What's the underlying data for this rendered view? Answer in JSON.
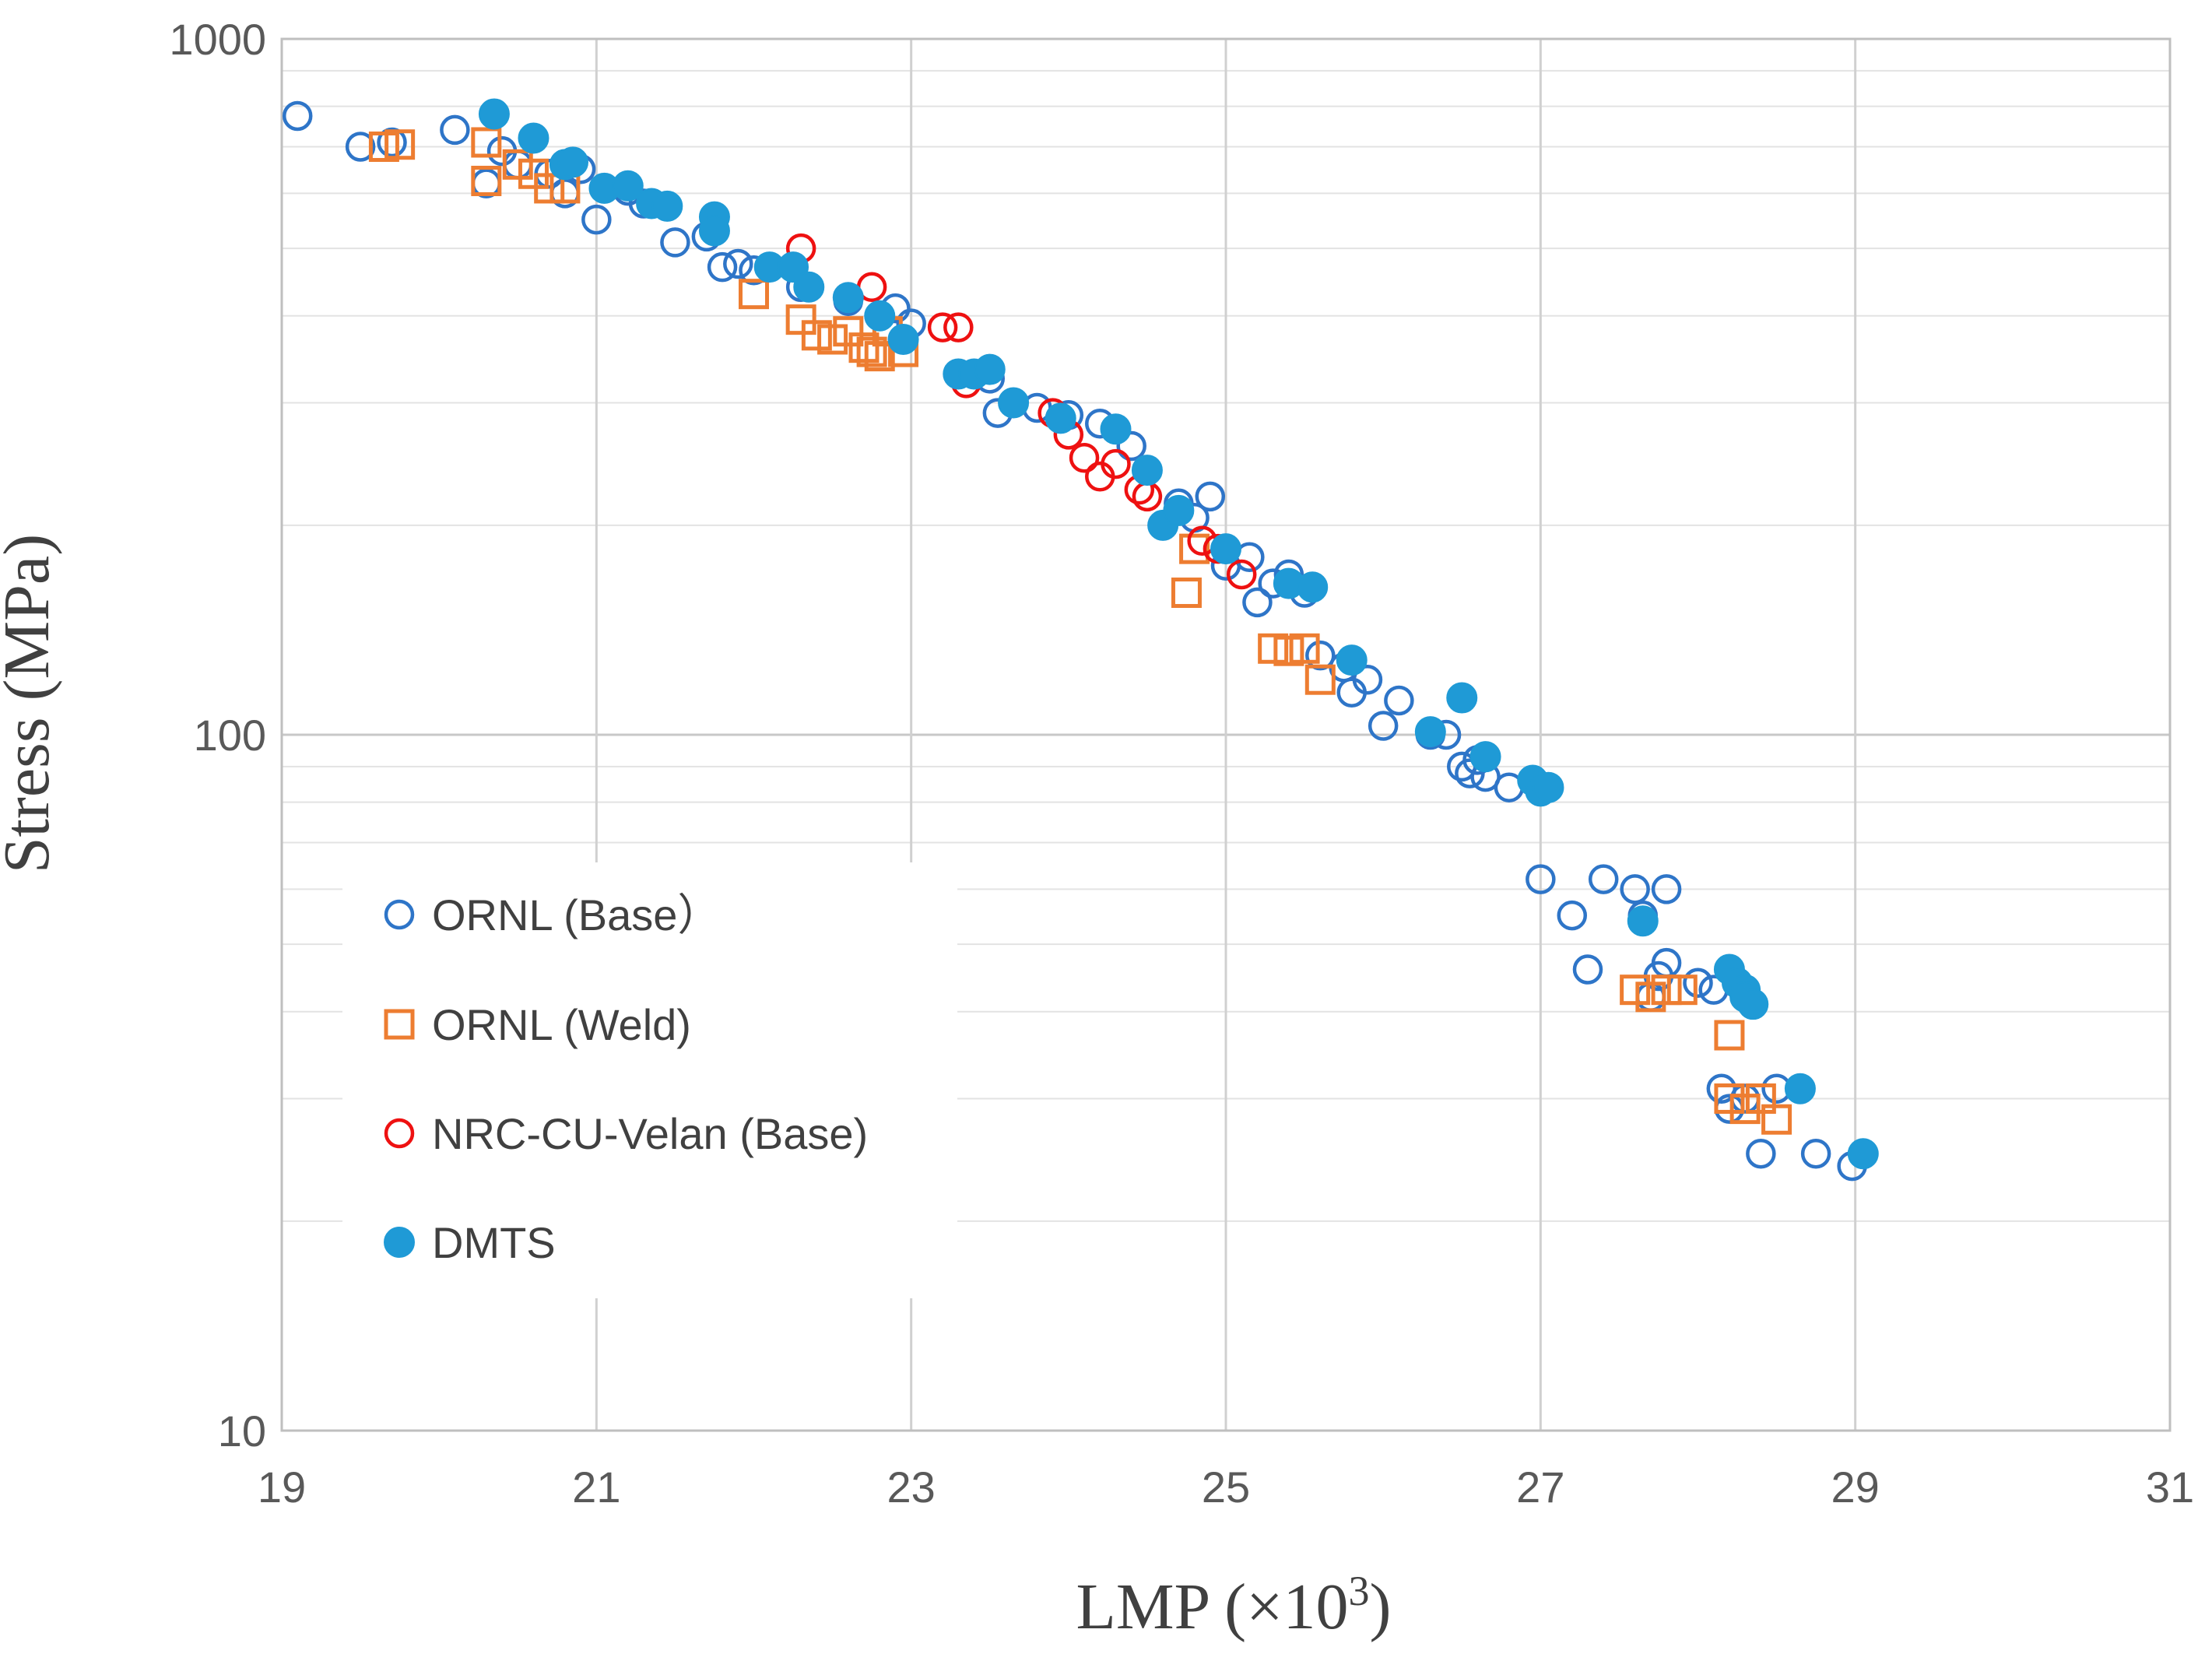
{
  "chart_data": {
    "type": "scatter",
    "xlabel": "LMP (×10",
    "xlabel_sup": "3",
    "xlabel_close": ")",
    "ylabel": "Stress (MPa)",
    "xlim": [
      19,
      31
    ],
    "ylim": [
      10,
      1000
    ],
    "y_scale": "log",
    "x_ticks": [
      "19",
      "21",
      "23",
      "25",
      "27",
      "29",
      "31"
    ],
    "y_ticks": [
      "10",
      "100",
      "1000"
    ],
    "grid": true,
    "legend_position": "left-center",
    "series": [
      {
        "name": "ORNL (Base）",
        "marker": "circle-open",
        "color": "#2e75c8",
        "points": [
          [
            19.1,
            775
          ],
          [
            19.5,
            700
          ],
          [
            19.7,
            710
          ],
          [
            20.1,
            740
          ],
          [
            20.3,
            620
          ],
          [
            20.4,
            690
          ],
          [
            20.5,
            660
          ],
          [
            20.7,
            640
          ],
          [
            20.8,
            600
          ],
          [
            20.9,
            650
          ],
          [
            21.0,
            550
          ],
          [
            21.2,
            605
          ],
          [
            21.3,
            580
          ],
          [
            21.5,
            510
          ],
          [
            21.7,
            520
          ],
          [
            21.8,
            470
          ],
          [
            21.9,
            475
          ],
          [
            22.0,
            465
          ],
          [
            22.3,
            440
          ],
          [
            22.6,
            420
          ],
          [
            22.9,
            410
          ],
          [
            23.0,
            390
          ],
          [
            23.3,
            330
          ],
          [
            23.5,
            325
          ],
          [
            23.55,
            290
          ],
          [
            23.8,
            295
          ],
          [
            24.0,
            288
          ],
          [
            24.2,
            280
          ],
          [
            24.4,
            260
          ],
          [
            24.7,
            215
          ],
          [
            24.8,
            205
          ],
          [
            24.9,
            220
          ],
          [
            25.0,
            175
          ],
          [
            25.15,
            180
          ],
          [
            25.2,
            155
          ],
          [
            25.3,
            165
          ],
          [
            25.4,
            170
          ],
          [
            25.5,
            160
          ],
          [
            25.6,
            130
          ],
          [
            25.75,
            125
          ],
          [
            25.8,
            115
          ],
          [
            25.9,
            120
          ],
          [
            26.1,
            112
          ],
          [
            26.0,
            103
          ],
          [
            26.3,
            100
          ],
          [
            26.4,
            100
          ],
          [
            26.5,
            90
          ],
          [
            26.55,
            88
          ],
          [
            26.6,
            92
          ],
          [
            26.65,
            87
          ],
          [
            26.8,
            84
          ],
          [
            27.0,
            62
          ],
          [
            27.2,
            55
          ],
          [
            27.3,
            46
          ],
          [
            27.4,
            62
          ],
          [
            27.6,
            60
          ],
          [
            27.65,
            55
          ],
          [
            27.7,
            42
          ],
          [
            27.75,
            45
          ],
          [
            27.8,
            47
          ],
          [
            27.8,
            60
          ],
          [
            28.0,
            44
          ],
          [
            28.1,
            43
          ],
          [
            28.15,
            31
          ],
          [
            28.2,
            29
          ],
          [
            28.3,
            30
          ],
          [
            28.4,
            25
          ],
          [
            28.5,
            31
          ],
          [
            28.75,
            25
          ],
          [
            28.98,
            24
          ]
        ]
      },
      {
        "name": "ORNL (Weld)",
        "marker": "square-open",
        "color": "#ed7d31",
        "points": [
          [
            19.65,
            700
          ],
          [
            19.75,
            705
          ],
          [
            20.3,
            710
          ],
          [
            20.3,
            625
          ],
          [
            20.5,
            660
          ],
          [
            20.6,
            640
          ],
          [
            20.7,
            610
          ],
          [
            20.8,
            610
          ],
          [
            22.0,
            430
          ],
          [
            22.3,
            395
          ],
          [
            22.4,
            375
          ],
          [
            22.5,
            370
          ],
          [
            22.6,
            380
          ],
          [
            22.7,
            360
          ],
          [
            22.75,
            355
          ],
          [
            22.8,
            350
          ],
          [
            22.85,
            380
          ],
          [
            22.95,
            355
          ],
          [
            24.75,
            160
          ],
          [
            24.8,
            185
          ],
          [
            25.3,
            133
          ],
          [
            25.4,
            132
          ],
          [
            25.5,
            133
          ],
          [
            25.6,
            120
          ],
          [
            27.6,
            43
          ],
          [
            27.7,
            42
          ],
          [
            27.8,
            43
          ],
          [
            27.9,
            43
          ],
          [
            28.2,
            37
          ],
          [
            28.2,
            30
          ],
          [
            28.3,
            29
          ],
          [
            28.4,
            30
          ],
          [
            28.5,
            28
          ]
        ]
      },
      {
        "name": "NRC-CU-Velan (Base)",
        "marker": "circle-open",
        "color": "#ee1111",
        "points": [
          [
            22.3,
            500
          ],
          [
            22.75,
            440
          ],
          [
            23.2,
            385
          ],
          [
            23.3,
            385
          ],
          [
            23.35,
            320
          ],
          [
            23.65,
            300
          ],
          [
            23.9,
            290
          ],
          [
            24.0,
            270
          ],
          [
            24.1,
            250
          ],
          [
            24.2,
            235
          ],
          [
            24.3,
            245
          ],
          [
            24.45,
            225
          ],
          [
            24.5,
            220
          ],
          [
            24.85,
            190
          ],
          [
            24.95,
            185
          ],
          [
            25.1,
            170
          ]
        ]
      },
      {
        "name": "DMTS",
        "marker": "circle-filled",
        "color": "#1f9ad6",
        "points": [
          [
            20.35,
            780
          ],
          [
            20.6,
            720
          ],
          [
            20.8,
            660
          ],
          [
            20.85,
            665
          ],
          [
            21.05,
            610
          ],
          [
            21.2,
            615
          ],
          [
            21.35,
            580
          ],
          [
            21.45,
            575
          ],
          [
            21.75,
            555
          ],
          [
            21.75,
            530
          ],
          [
            22.1,
            470
          ],
          [
            22.25,
            470
          ],
          [
            22.35,
            440
          ],
          [
            22.6,
            425
          ],
          [
            22.8,
            400
          ],
          [
            22.95,
            370
          ],
          [
            23.3,
            330
          ],
          [
            23.4,
            330
          ],
          [
            23.5,
            335
          ],
          [
            23.65,
            300
          ],
          [
            23.95,
            285
          ],
          [
            24.3,
            275
          ],
          [
            24.5,
            240
          ],
          [
            24.6,
            200
          ],
          [
            24.7,
            210
          ],
          [
            25.0,
            185
          ],
          [
            25.4,
            165
          ],
          [
            25.55,
            163
          ],
          [
            25.8,
            128
          ],
          [
            26.3,
            101
          ],
          [
            26.5,
            113
          ],
          [
            26.65,
            93
          ],
          [
            26.95,
            86
          ],
          [
            27.0,
            83
          ],
          [
            27.05,
            84
          ],
          [
            27.65,
            54
          ],
          [
            28.2,
            46
          ],
          [
            28.25,
            44
          ],
          [
            28.3,
            43
          ],
          [
            28.3,
            42
          ],
          [
            28.35,
            41
          ],
          [
            28.65,
            31
          ],
          [
            29.05,
            25
          ]
        ]
      }
    ]
  }
}
